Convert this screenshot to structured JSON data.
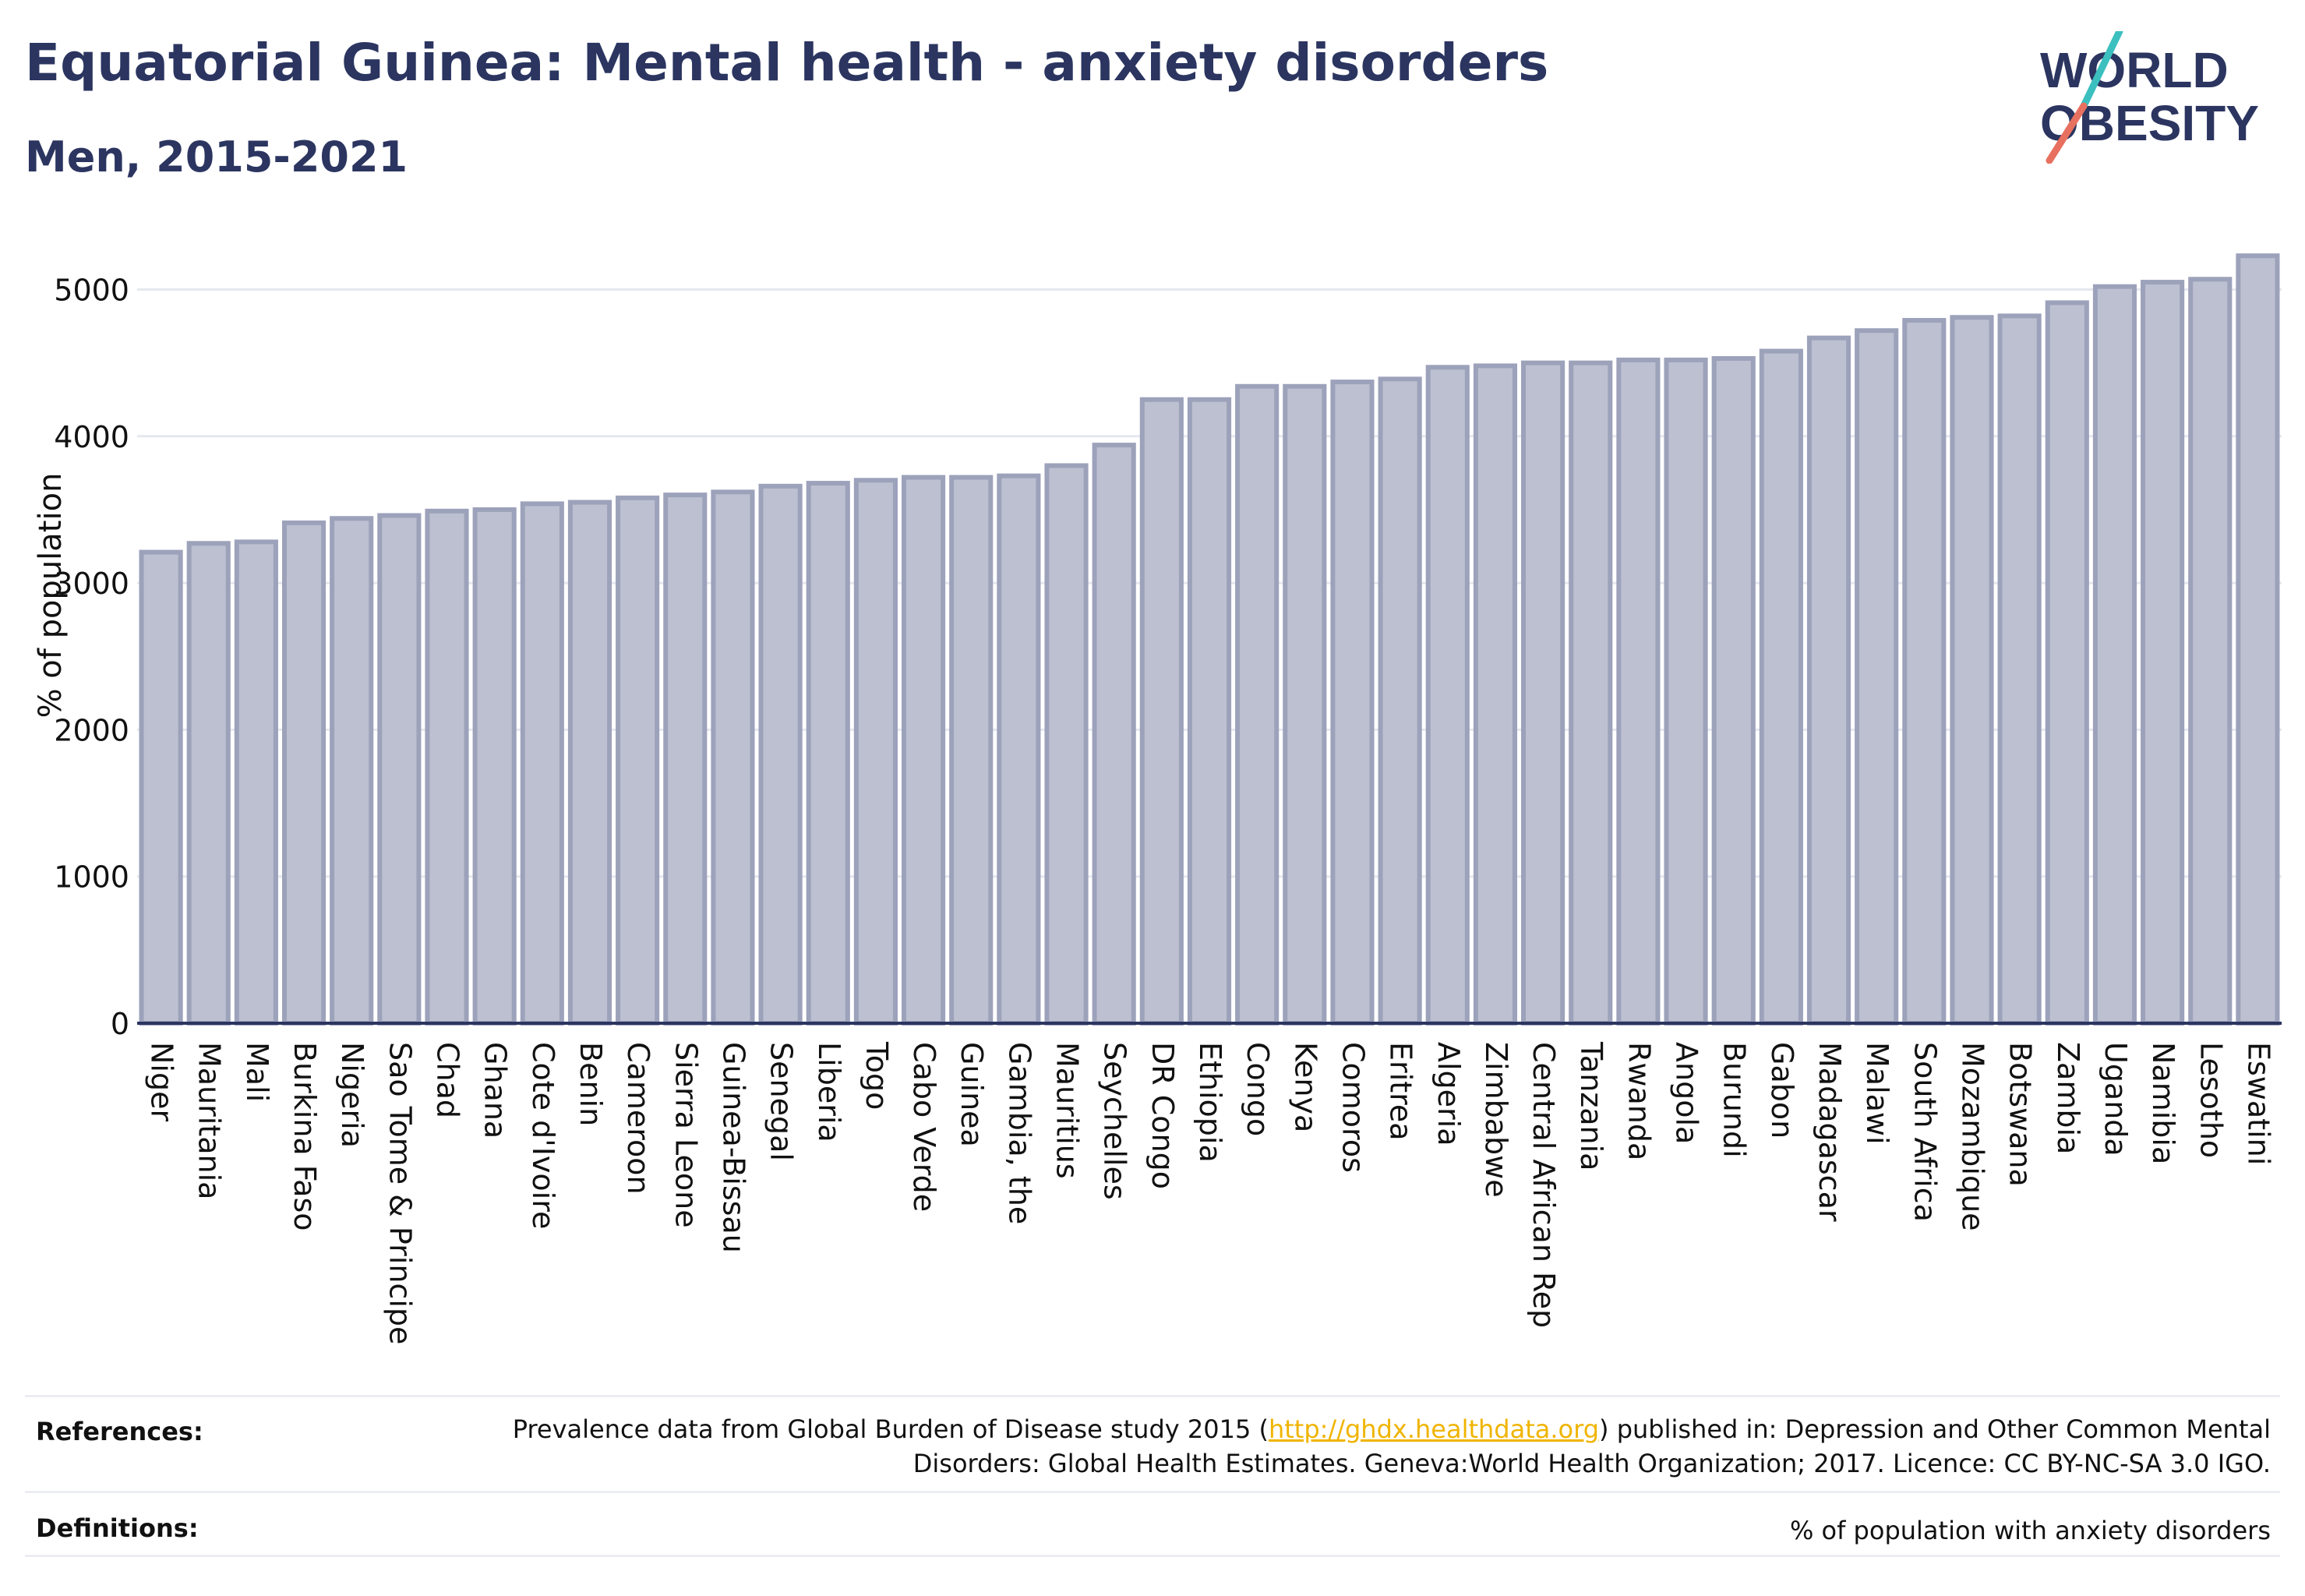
{
  "header": {
    "title": "Equatorial Guinea: Mental health - anxiety disorders",
    "subtitle": "Men, 2015-2021"
  },
  "logo": {
    "line1": "WORLD",
    "line2": "OBESITY",
    "text_color": "#2b3560",
    "slash_top_color": "#3cbfbf",
    "slash_bottom_color": "#e8705f"
  },
  "colors": {
    "bar_fill": "#bcc0d0",
    "bar_stroke": "#9da2bb",
    "axis": "#2b3560",
    "grid": "#e6e8ef"
  },
  "chart_data": {
    "type": "bar",
    "ylabel": "% of population",
    "ylim": [
      0,
      5300
    ],
    "yticks": [
      0,
      1000,
      2000,
      3000,
      4000,
      5000
    ],
    "grid": true,
    "categories": [
      "Niger",
      "Mauritania",
      "Mali",
      "Burkina Faso",
      "Nigeria",
      "Sao Tome & Principe",
      "Chad",
      "Ghana",
      "Cote d'Ivoire",
      "Benin",
      "Cameroon",
      "Sierra Leone",
      "Guinea-Bissau",
      "Senegal",
      "Liberia",
      "Togo",
      "Cabo Verde",
      "Guinea",
      "Gambia, the",
      "Mauritius",
      "Seychelles",
      "DR Congo",
      "Ethiopia",
      "Congo",
      "Kenya",
      "Comoros",
      "Eritrea",
      "Algeria",
      "Zimbabwe",
      "Central African Rep",
      "Tanzania",
      "Rwanda",
      "Angola",
      "Burundi",
      "Gabon",
      "Madagascar",
      "Malawi",
      "South Africa",
      "Mozambique",
      "Botswana",
      "Zambia",
      "Uganda",
      "Namibia",
      "Lesotho",
      "Eswatini"
    ],
    "values": [
      3210,
      3270,
      3280,
      3410,
      3440,
      3460,
      3490,
      3500,
      3540,
      3550,
      3580,
      3600,
      3620,
      3660,
      3680,
      3700,
      3720,
      3720,
      3730,
      3800,
      3940,
      4250,
      4250,
      4340,
      4340,
      4370,
      4390,
      4470,
      4480,
      4500,
      4500,
      4520,
      4520,
      4530,
      4580,
      4670,
      4720,
      4790,
      4810,
      4820,
      4910,
      5020,
      5050,
      5070,
      5230
    ]
  },
  "footer": {
    "references_label": "References:",
    "references_text_before": "Prevalence data from Global Burden of Disease study 2015 (",
    "references_link": "http://ghdx.healthdata.org",
    "references_text_after": ") published in: Depression and Other Common Mental Disorders: Global Health Estimates. Geneva:World Health Organization; 2017. Licence: CC BY-NC-SA 3.0 IGO.",
    "definitions_label": "Definitions:",
    "definitions_text": "% of population with anxiety disorders"
  }
}
